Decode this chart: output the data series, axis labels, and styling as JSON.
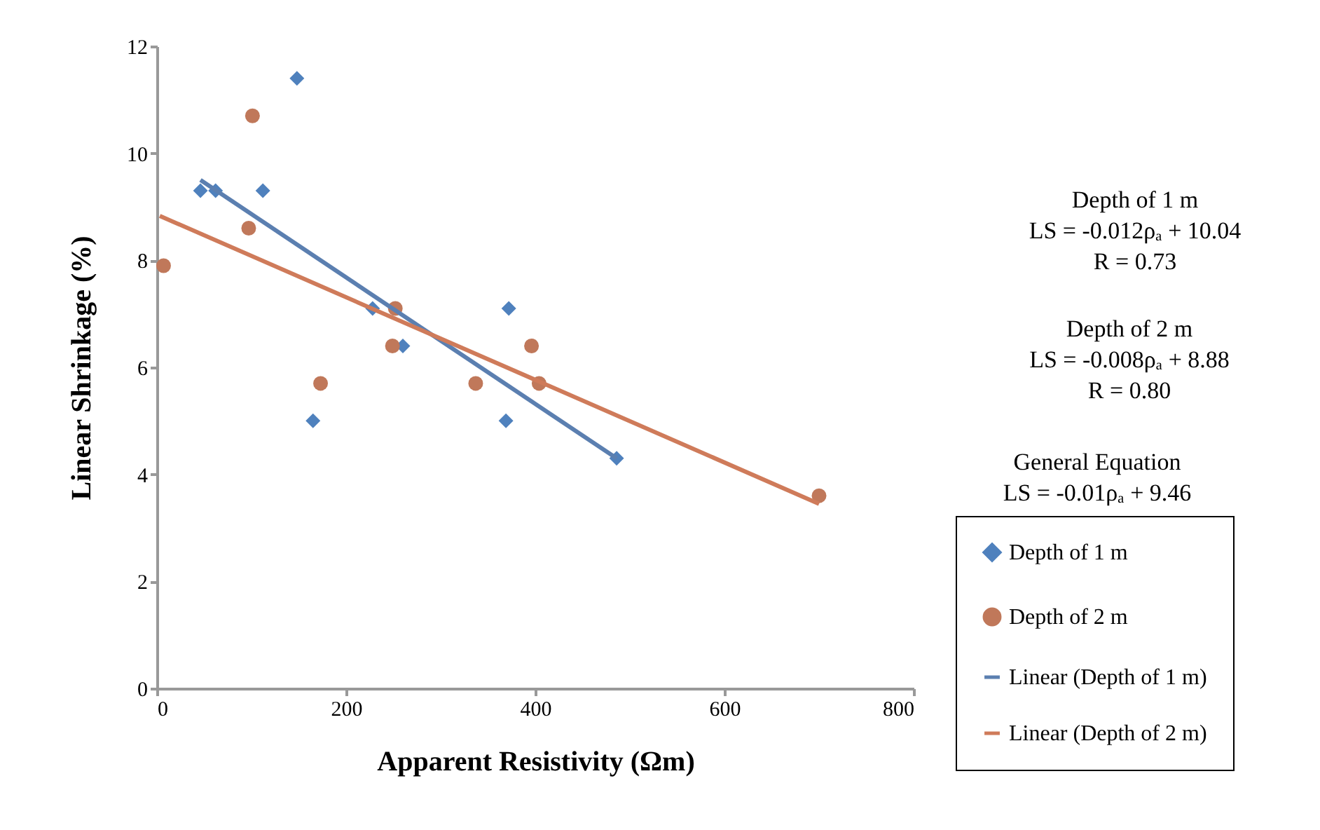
{
  "chart_data": {
    "type": "scatter",
    "xlabel": "Apparent Resistivity (Ωm)",
    "ylabel": "Linear Shrinkage (%)",
    "xlim": [
      0,
      800
    ],
    "xticks": [
      0,
      200,
      400,
      600,
      800
    ],
    "ylim": [
      0,
      12
    ],
    "yticks": [
      0,
      2,
      4,
      6,
      8,
      10,
      12
    ],
    "grid": false,
    "legend": "right",
    "series": [
      {
        "name": "Depth of 1 m",
        "marker": "diamond",
        "color": "#4f81bd",
        "x": [
          46,
          62,
          112,
          148,
          165,
          228,
          260,
          372,
          369,
          486
        ],
        "values": [
          9.3,
          9.3,
          9.3,
          11.4,
          5.0,
          7.1,
          6.4,
          7.1,
          5.0,
          4.3
        ]
      },
      {
        "name": "Depth of 2 m",
        "marker": "circle",
        "color": "#c0785a",
        "x": [
          7,
          97,
          101,
          173,
          249,
          252,
          337,
          396,
          404,
          700
        ],
        "values": [
          7.9,
          8.6,
          10.7,
          5.7,
          6.4,
          7.1,
          5.7,
          6.4,
          5.7,
          3.6
        ]
      },
      {
        "name": "Linear (Depth of 1 m)",
        "type": "line",
        "color": "#5b7fb0",
        "x": [
          46,
          486
        ],
        "values": [
          9.5,
          4.3
        ]
      },
      {
        "name": "Linear (Depth of 2 m)",
        "type": "line",
        "color": "#cf7b5a",
        "x": [
          3,
          700
        ],
        "values": [
          8.83,
          3.45
        ]
      }
    ],
    "annotations": [
      "Depth of 1 m\nLS = -0.012ρₐ + 10.04\nR = 0.73",
      "Depth of 2 m\nLS = -0.008ρₐ + 8.88\nR = 0.80",
      "General Equation\nLS = -0.01ρₐ + 9.46"
    ]
  }
}
